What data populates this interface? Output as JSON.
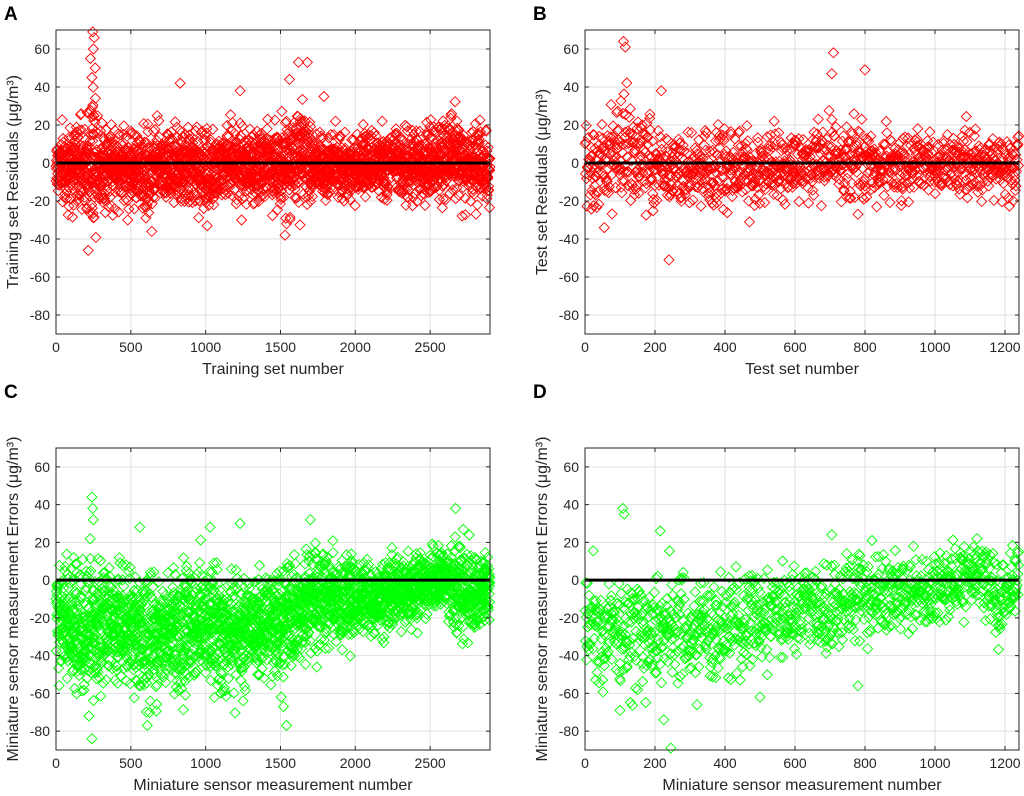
{
  "chart_data": [
    {
      "type": "scatter",
      "panel": "A",
      "xlabel": "Training set number",
      "ylabel": "Training set Residuals",
      "yunit": "(μg/m³)",
      "xlim": [
        0,
        2900
      ],
      "ylim": [
        -90,
        70
      ],
      "xticks": [
        0,
        500,
        1000,
        1500,
        2000,
        2500
      ],
      "yticks": [
        -80,
        -60,
        -40,
        -20,
        0,
        20,
        40,
        60
      ],
      "n_points": 2900,
      "marker": "diamond",
      "color": "#ff0000",
      "reference_line": 0,
      "grid": true,
      "profile": [
        [
          0,
          -2,
          9
        ],
        [
          150,
          -2,
          11
        ],
        [
          220,
          0,
          14
        ],
        [
          250,
          8,
          18
        ],
        [
          300,
          -1,
          12
        ],
        [
          500,
          -2,
          9
        ],
        [
          600,
          -4,
          11
        ],
        [
          700,
          0,
          9
        ],
        [
          800,
          -4,
          10
        ],
        [
          900,
          -2,
          9
        ],
        [
          1000,
          -4,
          11
        ],
        [
          1100,
          -2,
          10
        ],
        [
          1200,
          2,
          10
        ],
        [
          1300,
          -2,
          9
        ],
        [
          1500,
          0,
          11
        ],
        [
          1600,
          2,
          12
        ],
        [
          1800,
          -1,
          9
        ],
        [
          2000,
          -2,
          8
        ],
        [
          2200,
          -1,
          8
        ],
        [
          2400,
          -1,
          9
        ],
        [
          2650,
          2,
          11
        ],
        [
          2900,
          -2,
          9
        ]
      ],
      "extremes": [
        [
          245,
          69
        ],
        [
          255,
          66
        ],
        [
          250,
          60
        ],
        [
          230,
          55
        ],
        [
          262,
          50
        ],
        [
          240,
          45
        ],
        [
          830,
          42
        ],
        [
          1560,
          44
        ],
        [
          1620,
          53
        ],
        [
          1680,
          53
        ],
        [
          1790,
          35
        ],
        [
          1230,
          38
        ],
        [
          215,
          -46
        ],
        [
          1530,
          -38
        ],
        [
          1540,
          -32
        ],
        [
          640,
          -36
        ],
        [
          480,
          -30
        ],
        [
          1010,
          -33
        ],
        [
          1240,
          -30
        ]
      ]
    },
    {
      "type": "scatter",
      "panel": "B",
      "xlabel": "Test set number",
      "ylabel": "Test set Residuals",
      "yunit": "(μg/m³)",
      "xlim": [
        0,
        1240
      ],
      "ylim": [
        -90,
        70
      ],
      "xticks": [
        0,
        200,
        400,
        600,
        800,
        1000,
        1200
      ],
      "yticks": [
        -80,
        -60,
        -40,
        -20,
        0,
        20,
        40,
        60
      ],
      "n_points": 1240,
      "marker": "diamond",
      "color": "#ff0000",
      "reference_line": 0,
      "grid": true,
      "profile": [
        [
          0,
          -2,
          10
        ],
        [
          60,
          -2,
          12
        ],
        [
          100,
          10,
          16
        ],
        [
          150,
          2,
          12
        ],
        [
          250,
          -4,
          10
        ],
        [
          400,
          -2,
          10
        ],
        [
          500,
          -2,
          9
        ],
        [
          600,
          0,
          9
        ],
        [
          700,
          2,
          10
        ],
        [
          800,
          -1,
          9
        ],
        [
          1000,
          -2,
          8
        ],
        [
          1100,
          -1,
          9
        ],
        [
          1240,
          -2,
          9
        ]
      ],
      "extremes": [
        [
          110,
          64
        ],
        [
          115,
          61
        ],
        [
          710,
          58
        ],
        [
          705,
          47
        ],
        [
          800,
          49
        ],
        [
          218,
          38
        ],
        [
          240,
          -51
        ],
        [
          55,
          -34
        ],
        [
          470,
          -31
        ],
        [
          780,
          -27
        ]
      ]
    },
    {
      "type": "scatter",
      "panel": "C",
      "xlabel": "Miniature sensor measurement number",
      "ylabel": "Miniature sensor measurement Errors",
      "yunit": "(μg/m³)",
      "xlim": [
        0,
        2900
      ],
      "ylim": [
        -90,
        70
      ],
      "xticks": [
        0,
        500,
        1000,
        1500,
        2000,
        2500
      ],
      "yticks": [
        -80,
        -60,
        -40,
        -20,
        0,
        20,
        40,
        60
      ],
      "n_points": 2900,
      "marker": "diamond",
      "color": "#00ff00",
      "reference_line": 0,
      "grid": true,
      "profile": [
        [
          0,
          -18,
          12
        ],
        [
          150,
          -28,
          16
        ],
        [
          250,
          -20,
          18
        ],
        [
          400,
          -22,
          14
        ],
        [
          600,
          -30,
          15
        ],
        [
          800,
          -28,
          16
        ],
        [
          1000,
          -24,
          14
        ],
        [
          1100,
          -30,
          16
        ],
        [
          1300,
          -26,
          13
        ],
        [
          1500,
          -22,
          14
        ],
        [
          1700,
          -12,
          12
        ],
        [
          2000,
          -10,
          11
        ],
        [
          2200,
          -8,
          10
        ],
        [
          2400,
          -4,
          9
        ],
        [
          2550,
          2,
          8
        ],
        [
          2700,
          -6,
          12
        ],
        [
          2900,
          -4,
          10
        ]
      ],
      "extremes": [
        [
          240,
          44
        ],
        [
          245,
          38
        ],
        [
          250,
          32
        ],
        [
          560,
          28
        ],
        [
          1030,
          28
        ],
        [
          1230,
          30
        ],
        [
          1700,
          32
        ],
        [
          2670,
          38
        ],
        [
          240,
          -84
        ],
        [
          220,
          -72
        ],
        [
          610,
          -77
        ],
        [
          1540,
          -77
        ],
        [
          1520,
          -67
        ],
        [
          1250,
          -64
        ]
      ]
    },
    {
      "type": "scatter",
      "panel": "D",
      "xlabel": "Miniature sensor measurement number",
      "ylabel": "Miniature sensor measurement Errors",
      "yunit": "(μg/m³)",
      "xlim": [
        0,
        1240
      ],
      "ylim": [
        -90,
        70
      ],
      "xticks": [
        0,
        200,
        400,
        600,
        800,
        1000,
        1200
      ],
      "yticks": [
        -80,
        -60,
        -40,
        -20,
        0,
        20,
        40,
        60
      ],
      "n_points": 1240,
      "marker": "diamond",
      "color": "#00ff00",
      "reference_line": 0,
      "grid": true,
      "profile": [
        [
          0,
          -18,
          12
        ],
        [
          100,
          -28,
          16
        ],
        [
          200,
          -24,
          15
        ],
        [
          300,
          -28,
          14
        ],
        [
          450,
          -24,
          14
        ],
        [
          600,
          -20,
          12
        ],
        [
          700,
          -14,
          12
        ],
        [
          800,
          -8,
          11
        ],
        [
          950,
          -8,
          10
        ],
        [
          1050,
          -2,
          9
        ],
        [
          1120,
          4,
          8
        ],
        [
          1180,
          -10,
          11
        ],
        [
          1240,
          -2,
          9
        ]
      ],
      "extremes": [
        [
          108,
          38
        ],
        [
          112,
          35
        ],
        [
          215,
          26
        ],
        [
          705,
          24
        ],
        [
          820,
          21
        ],
        [
          1120,
          22
        ],
        [
          245,
          -89
        ],
        [
          225,
          -74
        ],
        [
          100,
          -69
        ],
        [
          500,
          -62
        ],
        [
          320,
          -66
        ],
        [
          780,
          -56
        ]
      ]
    }
  ]
}
